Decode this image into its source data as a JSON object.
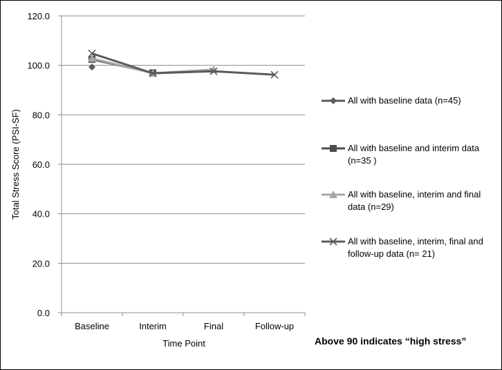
{
  "chart_data": {
    "type": "line",
    "xlabel": "Time Point",
    "ylabel": "Total Stress Score (PSI-SF)",
    "categories": [
      "Baseline",
      "Interim",
      "Final",
      "Follow-up"
    ],
    "ylim": [
      0,
      120
    ],
    "yticks": [
      "0.0",
      "20.0",
      "40.0",
      "60.0",
      "80.0",
      "100.0",
      "120.0"
    ],
    "grid": true,
    "legend_position": "right",
    "series": [
      {
        "name": "All with baseline data (n=45)",
        "marker": "diamond",
        "color": "#5a5a5a",
        "values": [
          99.3,
          null,
          null,
          null
        ]
      },
      {
        "name": "All with baseline and interim data (n=35 )",
        "marker": "square",
        "color": "#4d4d4d",
        "values": [
          102.4,
          97.0,
          null,
          null
        ]
      },
      {
        "name": "All with baseline, interim and final data (n=29)",
        "marker": "triangle",
        "color": "#a6a6a6",
        "values": [
          102.8,
          96.8,
          98.3,
          null
        ]
      },
      {
        "name": "All with baseline, interim, final and follow-up data (n= 21)",
        "marker": "x",
        "color": "#595959",
        "values": [
          104.8,
          96.8,
          97.6,
          96.2
        ]
      }
    ],
    "annotation": "Above 90 indicates “high stress”"
  }
}
